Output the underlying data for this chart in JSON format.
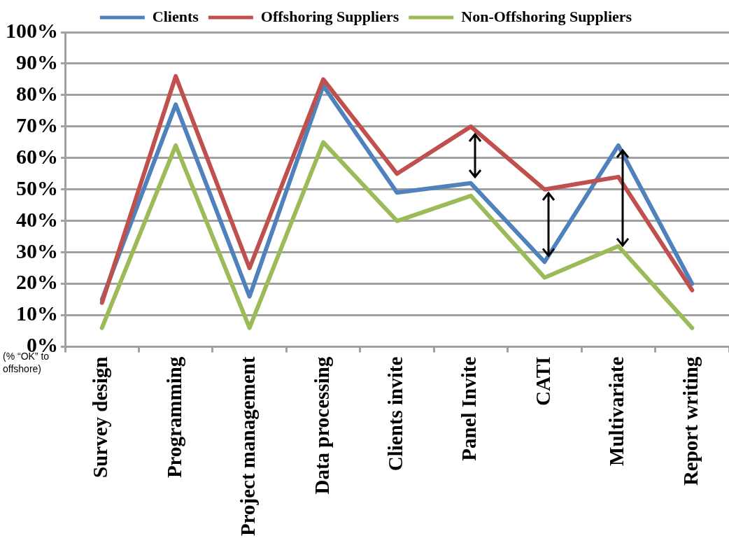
{
  "chart_data": {
    "type": "line",
    "categories": [
      "Survey design",
      "Programming",
      "Project management",
      "Data processing",
      "Clients invite",
      "Panel Invite",
      "CATI",
      "Multivariate",
      "Report writing"
    ],
    "series": [
      {
        "name": "Clients",
        "color": "#4f81bd",
        "values": [
          15,
          77,
          16,
          83,
          49,
          52,
          27,
          64,
          20
        ]
      },
      {
        "name": "Offshoring Suppliers",
        "color": "#c0504d",
        "values": [
          14,
          86,
          25,
          85,
          55,
          70,
          50,
          54,
          18
        ]
      },
      {
        "name": "Non-Offshoring Suppliers",
        "color": "#9bbb59",
        "values": [
          6,
          64,
          6,
          65,
          40,
          48,
          22,
          32,
          6
        ]
      }
    ],
    "ylim": [
      0,
      100
    ],
    "yticks": [
      {
        "value": 0,
        "label": "0%"
      },
      {
        "value": 10,
        "label": "10%"
      },
      {
        "value": 20,
        "label": "20%"
      },
      {
        "value": 30,
        "label": "30%"
      },
      {
        "value": 40,
        "label": "40%"
      },
      {
        "value": 50,
        "label": "50%"
      },
      {
        "value": 60,
        "label": "60%"
      },
      {
        "value": 70,
        "label": "70%"
      },
      {
        "value": 80,
        "label": "80%"
      },
      {
        "value": 90,
        "label": "90%"
      },
      {
        "value": 100,
        "label": "100%"
      }
    ],
    "grid": "y",
    "legend": "top",
    "marker": "none",
    "line_style": "solid",
    "annotations": [
      "(% “OK” to offshore)"
    ]
  }
}
